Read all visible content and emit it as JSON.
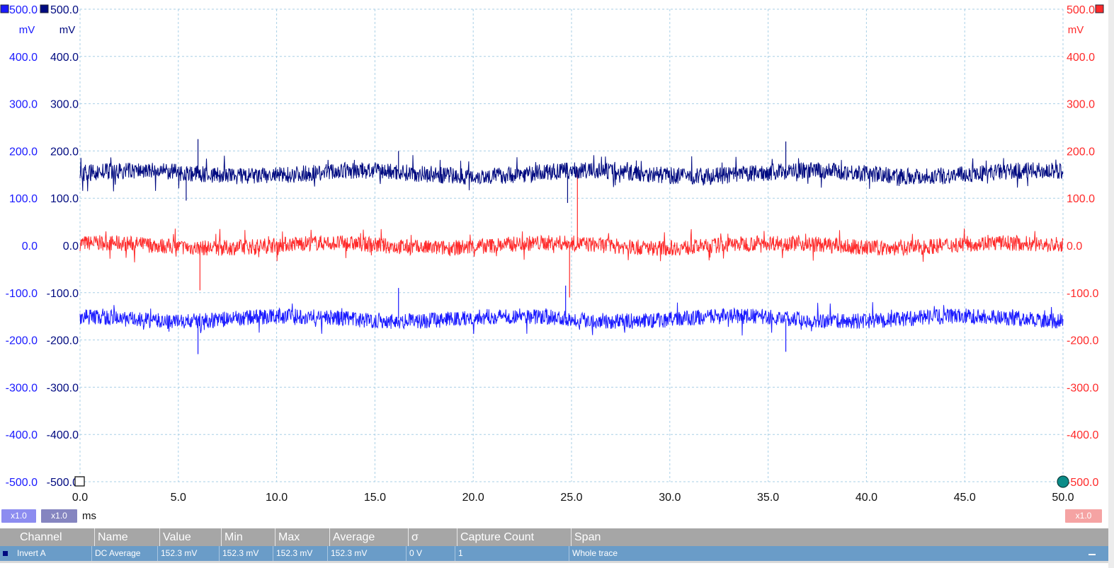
{
  "chart_data": {
    "type": "line",
    "x_axis": {
      "unit": "ms",
      "range": [
        0,
        50
      ],
      "ticks": [
        "0.0",
        "5.0",
        "10.0",
        "15.0",
        "20.0",
        "25.0",
        "30.0",
        "35.0",
        "40.0",
        "45.0",
        "50.0"
      ]
    },
    "y_axes": [
      {
        "side": "left-outer",
        "color": "#1a1aff",
        "unit": "mV",
        "range": [
          -500,
          500
        ],
        "ticks": [
          "500.0",
          "400.0",
          "300.0",
          "200.0",
          "100.0",
          "0.0",
          "-100.0",
          "-200.0",
          "-300.0",
          "-400.0",
          "-500.0"
        ]
      },
      {
        "side": "left-inner",
        "color": "#000a80",
        "unit": "mV",
        "range": [
          -500,
          500
        ],
        "ticks": [
          "500.0",
          "400.0",
          "300.0",
          "200.0",
          "100.0",
          "0.0",
          "-100.0",
          "-200.0",
          "-300.0",
          "-400.0",
          "-500.0"
        ]
      },
      {
        "side": "right",
        "color": "#ff2a2a",
        "unit": "mV",
        "range": [
          -500,
          500
        ],
        "ticks": [
          "500.0",
          "400.0",
          "300.0",
          "200.0",
          "100.0",
          "0.0",
          "-100.0",
          "-200.0",
          "-300.0",
          "-400.0",
          "-500.0"
        ]
      }
    ],
    "series": [
      {
        "color": "#000a80",
        "mean": 152.3,
        "noise_band": [
          120,
          185
        ],
        "spikes": [
          [
            6.0,
            225
          ],
          [
            16.2,
            200
          ],
          [
            35.9,
            220
          ],
          [
            24.8,
            90
          ],
          [
            5.4,
            95
          ]
        ]
      },
      {
        "color": "#ff2a2a",
        "mean": 0,
        "noise_band": [
          -30,
          30
        ],
        "spikes": [
          [
            25.3,
            160
          ],
          [
            24.9,
            -110
          ],
          [
            6.1,
            -95
          ]
        ]
      },
      {
        "color": "#1a1aff",
        "mean": -155,
        "noise_band": [
          -185,
          -125
        ],
        "spikes": [
          [
            6.0,
            -230
          ],
          [
            35.9,
            -225
          ],
          [
            16.2,
            -90
          ],
          [
            24.7,
            -85
          ]
        ]
      }
    ],
    "grid": true,
    "grid_style": "dashed",
    "grid_color": "#a9cfe6"
  },
  "scale_badges": [
    {
      "label": "x1.0",
      "color": "#8c8cf0"
    },
    {
      "label": "x1.0",
      "color": "#8585c0"
    },
    {
      "label": "x1.0",
      "color": "#f5a3a3"
    }
  ],
  "measurements": {
    "headers": [
      "Channel",
      "Name",
      "Value",
      "Min",
      "Max",
      "Average",
      "σ",
      "Capture Count",
      "Span"
    ],
    "rows": [
      [
        "Invert A",
        "DC Average",
        "152.3 mV",
        "152.3 mV",
        "152.3 mV",
        "152.3 mV",
        "0 V",
        "1",
        "Whole trace"
      ]
    ]
  }
}
